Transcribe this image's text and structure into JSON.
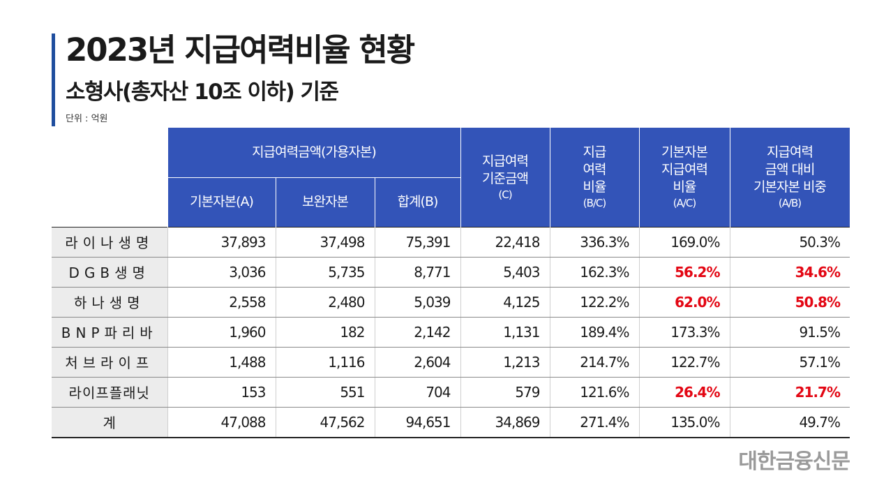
{
  "title": "2023년 지급여력비율 현황",
  "subtitle": "소형사(총자산 10조 이하) 기준",
  "unit": "단위 : 억원",
  "colors": {
    "accent": "#1f4e9e",
    "header_bg": "#3354b8",
    "highlight": "#e30613",
    "name_cell_bg": "#ececec"
  },
  "table": {
    "group_header": "지급여력금액(가용자본)",
    "sub_headers": [
      "기본자본(A)",
      "보완자본",
      "합계(B)"
    ],
    "col_c": {
      "line1": "지급여력",
      "line2": "기준금액",
      "sub": "(C)"
    },
    "col_ratio": {
      "line1": "지급",
      "line2": "여력",
      "line3": "비율",
      "sub": "(B/C)"
    },
    "col_basic_ratio": {
      "line1": "기본자본",
      "line2": "지급여력",
      "line3": "비율",
      "sub": "(A/C)"
    },
    "col_share": {
      "line1": "지급여력",
      "line2": "금액 대비",
      "line3": "기본자본 비중",
      "sub": "(A/B)"
    },
    "rows": [
      {
        "name": "라이나생명",
        "basic": "37,893",
        "supp": "37,498",
        "total": "75,391",
        "req": "22,418",
        "ratio": "336.3%",
        "basic_ratio": "169.0%",
        "share": "50.3%"
      },
      {
        "name": "DGB생명",
        "basic": "3,036",
        "supp": "5,735",
        "total": "8,771",
        "req": "5,403",
        "ratio": "162.3%",
        "basic_ratio": "56.2%",
        "share": "34.6%"
      },
      {
        "name": "하나생명",
        "basic": "2,558",
        "supp": "2,480",
        "total": "5,039",
        "req": "4,125",
        "ratio": "122.2%",
        "basic_ratio": "62.0%",
        "share": "50.8%"
      },
      {
        "name": "BNP파리바",
        "basic": "1,960",
        "supp": "182",
        "total": "2,142",
        "req": "1,131",
        "ratio": "189.4%",
        "basic_ratio": "173.3%",
        "share": "91.5%"
      },
      {
        "name": "처브라이프",
        "basic": "1,488",
        "supp": "1,116",
        "total": "2,604",
        "req": "1,213",
        "ratio": "214.7%",
        "basic_ratio": "122.7%",
        "share": "57.1%"
      },
      {
        "name": "라이프플래닛",
        "basic": "153",
        "supp": "551",
        "total": "704",
        "req": "579",
        "ratio": "121.6%",
        "basic_ratio": "26.4%",
        "share": "21.7%"
      },
      {
        "name": "계",
        "basic": "47,088",
        "supp": "47,562",
        "total": "94,651",
        "req": "34,869",
        "ratio": "271.4%",
        "basic_ratio": "135.0%",
        "share": "49.7%"
      }
    ]
  },
  "brand": "대한금융신문"
}
